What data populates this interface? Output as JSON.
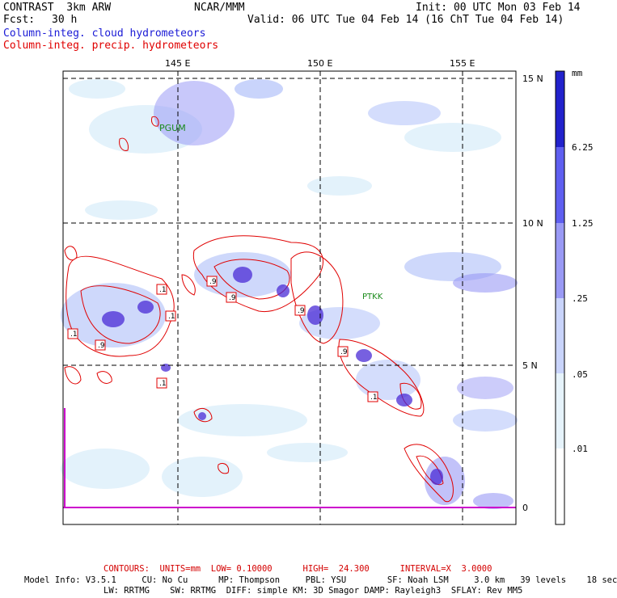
{
  "header": {
    "model": "CONTRAST  3km ARW",
    "org": "NCAR/MMM",
    "init": "Init: 00 UTC Mon 03 Feb 14",
    "fcst_label": "Fcst:",
    "fcst_value": "30 h",
    "valid": "Valid: 06 UTC Tue 04 Feb 14 (16 ChT Tue 04 Feb 14)"
  },
  "legend": {
    "cloud": "Column-integ. cloud hydrometeors",
    "precip": "Column-integ. precip. hydrometeors"
  },
  "map": {
    "lon_labels": [
      "145 E",
      "150 E",
      "155 E"
    ],
    "lat_labels": [
      "15 N",
      "10 N",
      "5 N",
      "0"
    ],
    "stations": [
      "PGUM",
      "PTKK"
    ],
    "contour_labels": [
      ".1",
      ".1",
      ".9",
      ".1",
      ".9",
      ".9",
      ".9",
      ".1",
      ".9",
      ".1"
    ],
    "colors": {
      "frame": "#000000",
      "grid": "#000000",
      "contour": "#e00000",
      "equator": "#cc00cc"
    }
  },
  "colorbar": {
    "unit": "mm",
    "ticks": [
      "6.25",
      "1.25",
      ".25",
      ".05",
      ".01"
    ],
    "colors": [
      "#2222cc",
      "#5f5ff0",
      "#9a9af5",
      "#c9d4fb",
      "#e6f3fb",
      "#ffffff"
    ]
  },
  "footer": {
    "contours": "CONTOURS:  UNITS=mm  LOW= 0.10000      HIGH=  24.300      INTERVAL=X  3.0000",
    "info1": "Model Info: V3.5.1     CU: No Cu      MP: Thompson     PBL: YSU        SF: Noah LSM     3.0 km   39 levels    18 sec",
    "info2": "LW: RRTMG    SW: RRTMG  DIFF: simple KM: 3D Smagor DAMP: Rayleigh3  SFLAY: Rev MM5"
  }
}
